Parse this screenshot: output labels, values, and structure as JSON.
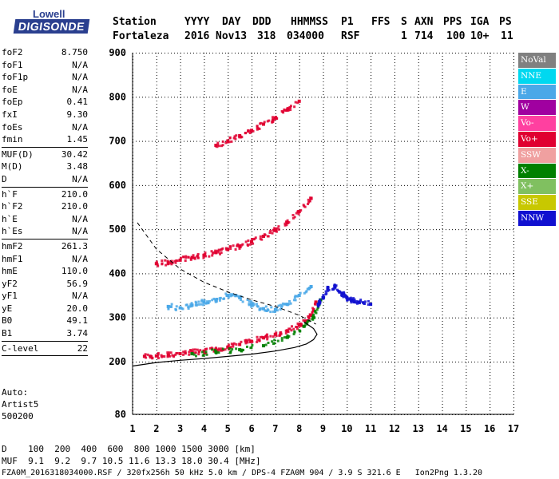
{
  "logo": {
    "line1": "Lowell",
    "line2": "DIGISONDE"
  },
  "header": {
    "labels": [
      "Station",
      "YYYY",
      "DAY",
      "DDD",
      "HHMMSS",
      "P1",
      "FFS",
      "S",
      "AXN",
      "PPS",
      "IGA",
      "PS"
    ],
    "values": [
      "Fortaleza",
      "2016",
      "Nov13",
      "318",
      "034000",
      "RSF",
      "1",
      "714",
      "100",
      "10+",
      "11"
    ]
  },
  "params": {
    "group1": [
      {
        "name": "foF2",
        "value": "8.750"
      },
      {
        "name": "foF1",
        "value": "N/A"
      },
      {
        "name": "foF1p",
        "value": "N/A"
      },
      {
        "name": "foE",
        "value": "N/A"
      },
      {
        "name": "foEp",
        "value": "0.41"
      },
      {
        "name": "fxI",
        "value": "9.30"
      },
      {
        "name": "foEs",
        "value": "N/A"
      },
      {
        "name": "fmin",
        "value": "1.45"
      }
    ],
    "group2": [
      {
        "name": "MUF(D)",
        "value": "30.42"
      },
      {
        "name": "M(D)",
        "value": "3.48"
      },
      {
        "name": "D",
        "value": "N/A"
      }
    ],
    "group3": [
      {
        "name": "h`F",
        "value": "210.0"
      },
      {
        "name": "h`F2",
        "value": "210.0"
      },
      {
        "name": "h`E",
        "value": "N/A"
      },
      {
        "name": "h`Es",
        "value": "N/A"
      }
    ],
    "group4": [
      {
        "name": "hmF2",
        "value": "261.3"
      },
      {
        "name": "hmF1",
        "value": "N/A"
      },
      {
        "name": "hmE",
        "value": "110.0"
      },
      {
        "name": "yF2",
        "value": "56.9"
      },
      {
        "name": "yF1",
        "value": "N/A"
      },
      {
        "name": "yE",
        "value": "20.0"
      },
      {
        "name": "B0",
        "value": "49.1"
      },
      {
        "name": "B1",
        "value": "3.74"
      }
    ],
    "group5": [
      {
        "name": "C-level",
        "value": "22"
      }
    ]
  },
  "auto": {
    "line1": "Auto:",
    "line2": "Artist5",
    "line3": "500200"
  },
  "bottom": {
    "d_label": "D",
    "d_values": "100  200  400  600  800 1000 1500 3000 [km]",
    "muf_label": "MUF",
    "muf_values": "9.1  9.2  9.7 10.5 11.6 13.3 18.0 30.4 [MHz]",
    "footer": "FZA0M_2016318034000.RSF / 320fx256h 50 kHz 5.0 km / DPS-4 FZA0M 904 / 3.9 S 321.6 E   Ion2Png 1.3.20"
  },
  "legend": [
    {
      "label": "NoVal",
      "color": "#808080"
    },
    {
      "label": "NNE",
      "color": "#00d8f0"
    },
    {
      "label": "E",
      "color": "#4aa8e8"
    },
    {
      "label": "W",
      "color": "#a000a0"
    },
    {
      "label": "Vo-",
      "color": "#ff40a0"
    },
    {
      "label": "Vo+",
      "color": "#e00030"
    },
    {
      "label": "SSW",
      "color": "#f0a0a0"
    },
    {
      "label": "X-",
      "color": "#008000"
    },
    {
      "label": "X+",
      "color": "#80c060"
    },
    {
      "label": "SSE",
      "color": "#c8c800"
    },
    {
      "label": "NNW",
      "color": "#1010d0"
    }
  ],
  "chart_data": {
    "type": "scatter",
    "title": "",
    "xlabel": "",
    "ylabel": "",
    "xlim": [
      1,
      17
    ],
    "ylim": [
      80,
      900
    ],
    "x_ticks": [
      1,
      2,
      3,
      4,
      5,
      6,
      7,
      8,
      9,
      10,
      11,
      12,
      13,
      14,
      15,
      16,
      17
    ],
    "y_ticks": [
      80,
      200,
      300,
      400,
      500,
      600,
      700,
      800,
      900
    ],
    "grid": true,
    "series": [
      {
        "name": "Vo+",
        "color": "#e00030",
        "x": [
          1.5,
          2.0,
          2.5,
          3.0,
          3.5,
          4.0,
          4.5,
          5.0,
          5.5,
          6.0,
          6.5,
          7.0,
          7.5,
          8.0,
          8.3,
          8.5,
          8.7
        ],
        "y": [
          212,
          213,
          215,
          218,
          221,
          224,
          228,
          233,
          239,
          246,
          254,
          262,
          270,
          282,
          292,
          305,
          335
        ]
      },
      {
        "name": "X-",
        "color": "#008000",
        "x": [
          3.5,
          4.5,
          5.5,
          6.5,
          7.5,
          8.2,
          8.6,
          8.9
        ],
        "y": [
          218,
          222,
          227,
          236,
          255,
          280,
          300,
          340
        ]
      },
      {
        "name": "E",
        "color": "#4aa8e8",
        "x": [
          2.5,
          3.0,
          3.5,
          4.0,
          4.5,
          5.0,
          5.5,
          6.0,
          6.5,
          7.0,
          7.5,
          8.0,
          8.5
        ],
        "y": [
          325,
          322,
          328,
          335,
          340,
          350,
          345,
          330,
          320,
          318,
          330,
          350,
          370
        ]
      },
      {
        "name": "Vo+",
        "color": "#e00030",
        "x": [
          2.0,
          2.5,
          3.0,
          3.5,
          4.0,
          4.5,
          5.0,
          5.5,
          6.0,
          6.5,
          7.0,
          7.5,
          8.0,
          8.5
        ],
        "y": [
          422,
          425,
          430,
          436,
          441,
          447,
          454,
          462,
          472,
          484,
          498,
          515,
          540,
          570
        ]
      },
      {
        "name": "Vo+",
        "color": "#e00030",
        "x": [
          4.5,
          5.0,
          5.5,
          6.0,
          6.5,
          7.0,
          7.5,
          8.0
        ],
        "y": [
          690,
          700,
          712,
          724,
          738,
          752,
          770,
          790
        ]
      },
      {
        "name": "NNW",
        "color": "#1010d0",
        "x": [
          8.8,
          9.0,
          9.2,
          9.5,
          9.8,
          10.0,
          10.2,
          10.5,
          11.0
        ],
        "y": [
          330,
          345,
          365,
          370,
          355,
          345,
          340,
          335,
          330
        ]
      }
    ],
    "model_curve": {
      "style": "dashed",
      "x": [
        1.2,
        2.0,
        3.0,
        4.0,
        5.0,
        6.0,
        7.0,
        8.0,
        8.7
      ],
      "y": [
        515,
        455,
        410,
        380,
        358,
        340,
        325,
        305,
        285
      ]
    },
    "profile_curve": {
      "style": "solid",
      "x": [
        1.0,
        2.0,
        3.0,
        4.0,
        5.0,
        6.0,
        7.0,
        7.8,
        8.3,
        8.6,
        8.75,
        8.6,
        8.2
      ],
      "y": [
        190,
        198,
        203,
        207,
        212,
        217,
        224,
        232,
        240,
        250,
        262,
        275,
        290
      ]
    }
  }
}
